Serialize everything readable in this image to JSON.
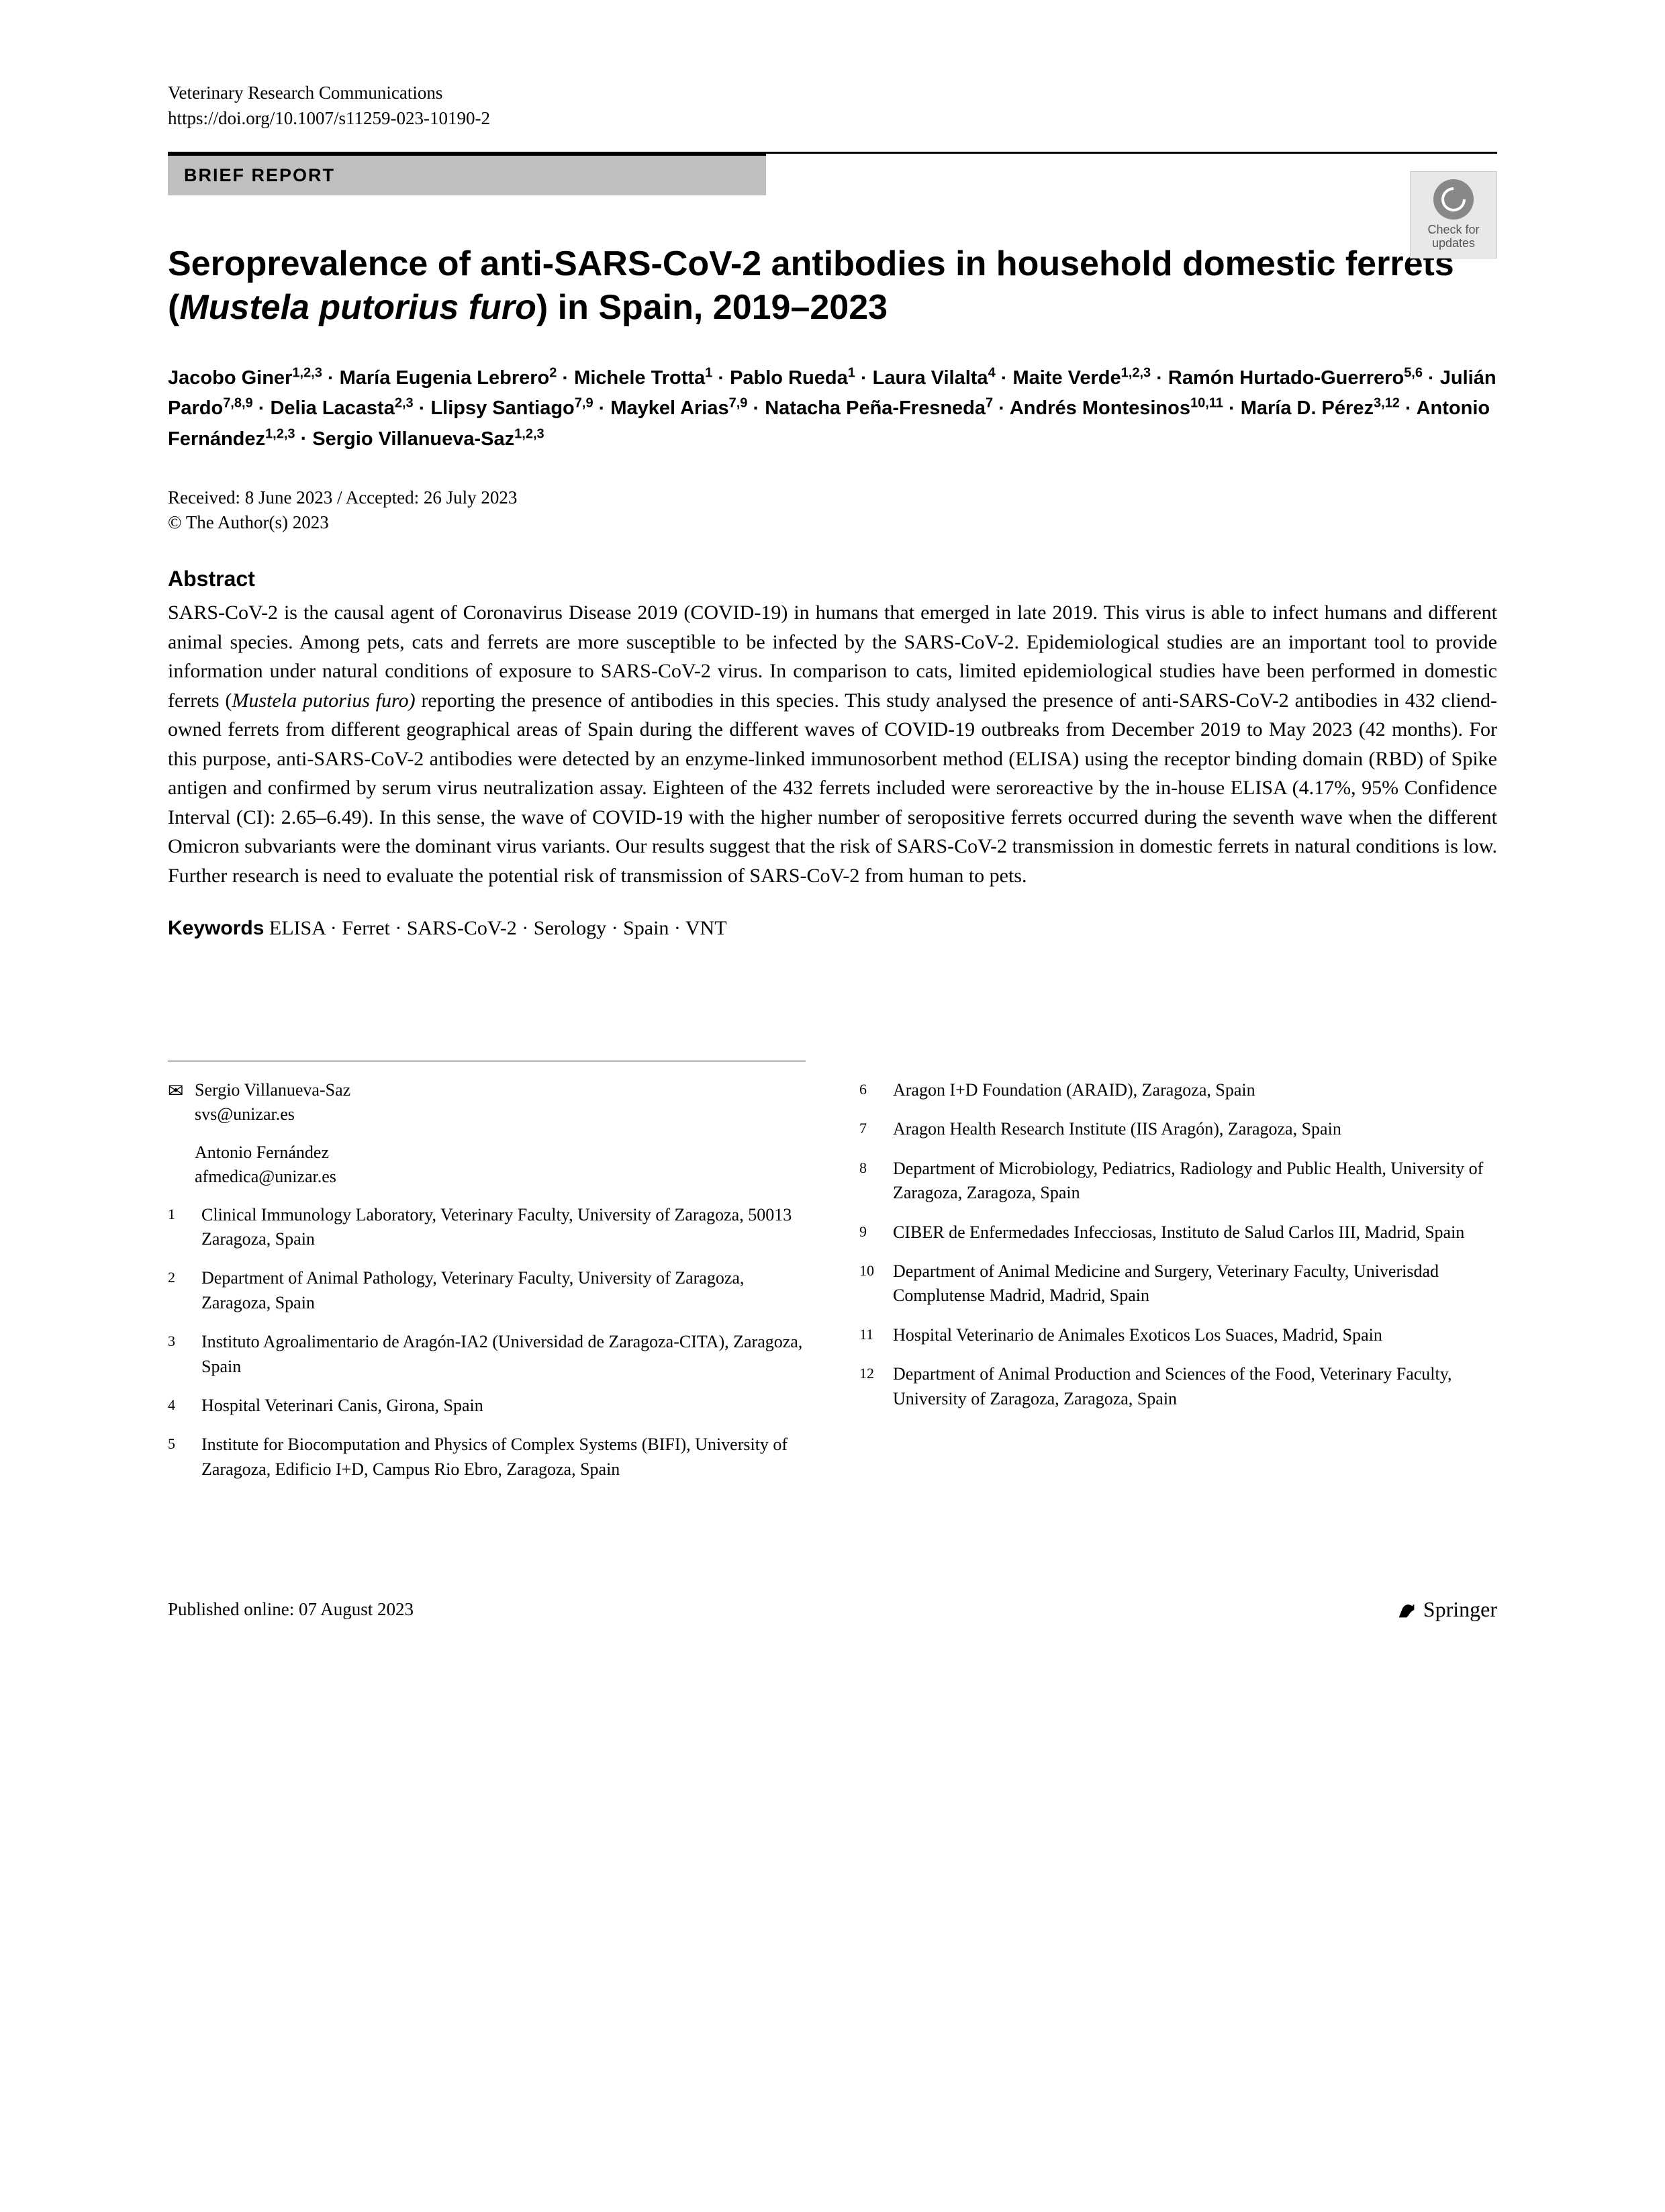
{
  "journal": "Veterinary Research Communications",
  "doi": "https://doi.org/10.1007/s11259-023-10190-2",
  "articleType": "BRIEF REPORT",
  "checkUpdates": "Check for\nupdates",
  "title": {
    "pre": "Seroprevalence of anti-SARS-CoV-2 antibodies in household domestic ferrets (",
    "italic": "Mustela putorius furo",
    "post": ") in Spain, 2019–2023"
  },
  "authors": [
    {
      "name": "Jacobo Giner",
      "sup": "1,2,3"
    },
    {
      "name": "María Eugenia Lebrero",
      "sup": "2"
    },
    {
      "name": "Michele Trotta",
      "sup": "1"
    },
    {
      "name": "Pablo Rueda",
      "sup": "1"
    },
    {
      "name": "Laura Vilalta",
      "sup": "4"
    },
    {
      "name": "Maite Verde",
      "sup": "1,2,3"
    },
    {
      "name": "Ramón Hurtado-Guerrero",
      "sup": "5,6"
    },
    {
      "name": "Julián Pardo",
      "sup": "7,8,9"
    },
    {
      "name": "Delia Lacasta",
      "sup": "2,3"
    },
    {
      "name": "Llipsy Santiago",
      "sup": "7,9"
    },
    {
      "name": "Maykel Arias",
      "sup": "7,9"
    },
    {
      "name": "Natacha Peña-Fresneda",
      "sup": "7"
    },
    {
      "name": "Andrés Montesinos",
      "sup": "10,11"
    },
    {
      "name": "María D. Pérez",
      "sup": "3,12"
    },
    {
      "name": "Antonio Fernández",
      "sup": "1,2,3"
    },
    {
      "name": "Sergio Villanueva-Saz",
      "sup": "1,2,3"
    }
  ],
  "sep": " · ",
  "received": "Received: 8 June 2023 / Accepted: 26 July 2023",
  "copyright": "© The Author(s) 2023",
  "abstractHeading": "Abstract",
  "abstract": {
    "p1": "SARS-CoV-2 is the causal agent of Coronavirus Disease 2019 (COVID-19) in humans that emerged in late 2019. This virus is able to infect humans and different animal species. Among pets, cats and ferrets are more susceptible to be infected by the SARS-CoV-2. Epidemiological studies are an important tool to provide information under natural conditions of exposure to SARS-CoV-2 virus. In comparison to cats, limited epidemiological studies have been performed in domestic ferrets (",
    "italic": "Mustela putorius furo)",
    "p2": " reporting the presence of antibodies in this species. This study analysed the presence of anti-SARS-CoV-2 antibodies in 432 cliend-owned ferrets from different geographical areas of Spain during the different waves of COVID-19 outbreaks from December 2019 to May 2023 (42 months). For this purpose, anti-SARS-CoV-2 antibodies were detected by an enzyme-linked immunosorbent method (ELISA) using the receptor binding domain (RBD) of Spike antigen and confirmed by serum virus neutralization assay. Eighteen of the 432 ferrets included were seroreactive by the in-house ELISA (4.17%, 95% Confidence Interval (CI): 2.65–6.49). In this sense, the wave of COVID-19 with the higher number of seropositive ferrets occurred during the seventh wave when the different Omicron subvariants were the dominant virus variants. Our results suggest that the risk of SARS-CoV-2 transmission in domestic ferrets in natural conditions is low. Further research is need to evaluate the potential risk of transmission of SARS-CoV-2 from human to pets."
  },
  "keywordsLabel": "Keywords",
  "keywords": "  ELISA · Ferret · SARS-CoV-2 · Serology · Spain · VNT",
  "correspondence": [
    {
      "name": "Sergio Villanueva-Saz",
      "email": "svs@unizar.es"
    },
    {
      "name": "Antonio Fernández",
      "email": "afmedica@unizar.es"
    }
  ],
  "affiliationsLeft": [
    {
      "n": "1",
      "text": "Clinical Immunology Laboratory, Veterinary Faculty, University of Zaragoza, 50013 Zaragoza, Spain"
    },
    {
      "n": "2",
      "text": "Department of Animal Pathology, Veterinary Faculty, University of Zaragoza, Zaragoza, Spain"
    },
    {
      "n": "3",
      "text": "Instituto Agroalimentario de Aragón-IA2 (Universidad de Zaragoza-CITA), Zaragoza, Spain"
    },
    {
      "n": "4",
      "text": "Hospital Veterinari Canis, Girona, Spain"
    },
    {
      "n": "5",
      "text": "Institute for Biocomputation and Physics of Complex Systems (BIFI), University of Zaragoza, Edificio I+D, Campus Rio Ebro, Zaragoza, Spain"
    }
  ],
  "affiliationsRight": [
    {
      "n": "6",
      "text": "Aragon I+D Foundation (ARAID), Zaragoza, Spain"
    },
    {
      "n": "7",
      "text": "Aragon Health Research Institute (IIS Aragón), Zaragoza, Spain"
    },
    {
      "n": "8",
      "text": "Department of Microbiology, Pediatrics, Radiology and Public Health, University of Zaragoza, Zaragoza, Spain"
    },
    {
      "n": "9",
      "text": "CIBER de Enfermedades Infecciosas, Instituto de Salud Carlos III, Madrid, Spain"
    },
    {
      "n": "10",
      "text": "Department of Animal Medicine and Surgery, Veterinary Faculty, Univerisdad Complutense Madrid, Madrid, Spain"
    },
    {
      "n": "11",
      "text": "Hospital Veterinario de Animales Exoticos Los Suaces, Madrid, Spain"
    },
    {
      "n": "12",
      "text": "Department of Animal Production and Sciences of the Food, Veterinary Faculty, University of Zaragoza, Zaragoza, Spain"
    }
  ],
  "published": "Published online: 07 August 2023",
  "publisher": "Springer"
}
